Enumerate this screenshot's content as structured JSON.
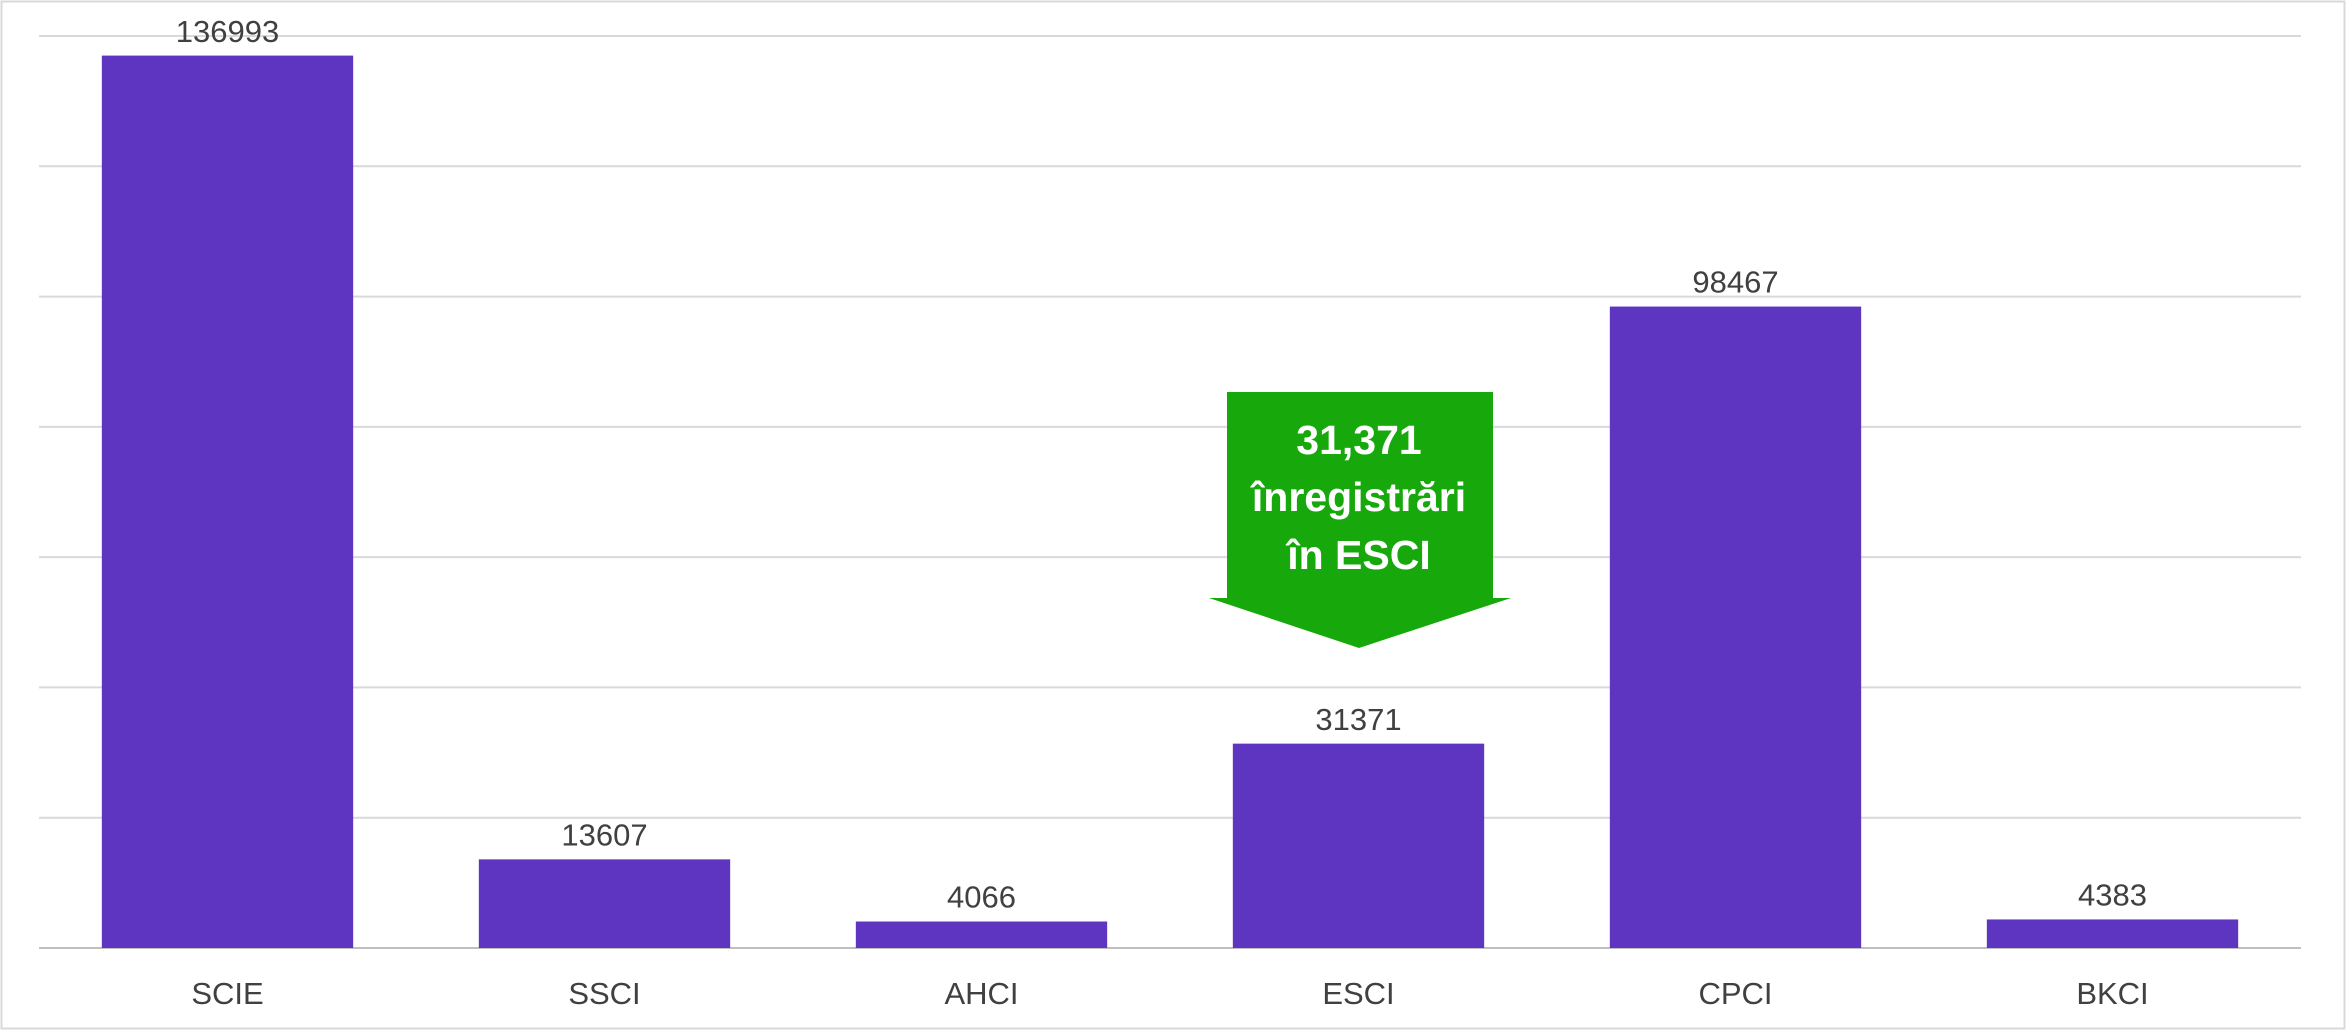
{
  "chart_data": {
    "type": "bar",
    "categories": [
      "SCIE",
      "SSCI",
      "AHCI",
      "ESCI",
      "CPCI",
      "BKCI"
    ],
    "values": [
      136993,
      13607,
      4066,
      31371,
      98467,
      4383
    ],
    "color": "#5e35c0",
    "ylim": [
      0,
      140000
    ],
    "yticks": [
      0,
      20000,
      40000,
      60000,
      80000,
      100000,
      120000,
      140000
    ],
    "ytick_labels": false,
    "grid": true,
    "annotation": {
      "lines": [
        "31,371",
        "înregistrări",
        "în ESCI"
      ],
      "color": "#17a90c"
    }
  }
}
